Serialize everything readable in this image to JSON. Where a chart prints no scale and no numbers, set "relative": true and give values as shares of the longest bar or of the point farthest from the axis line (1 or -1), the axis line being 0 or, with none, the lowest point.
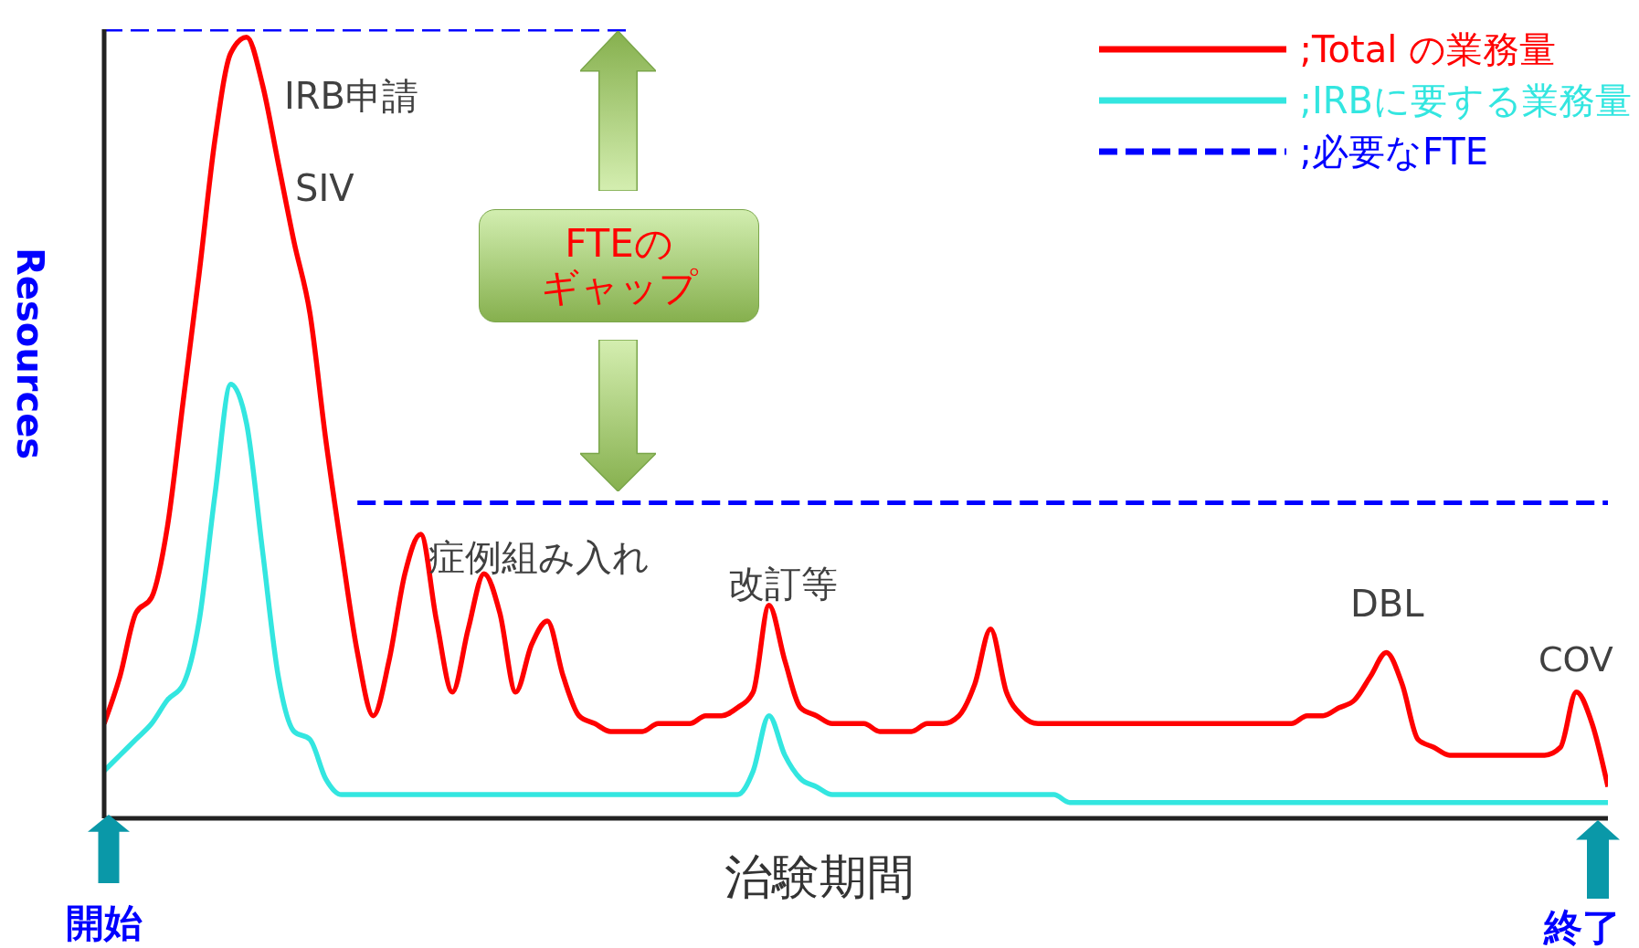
{
  "chart_data": {
    "type": "line",
    "relative": true,
    "xlabel": "治験期間",
    "ylabel": "Resources",
    "legend": "top right",
    "categories": [
      null,
      null,
      null,
      null,
      null,
      null,
      null,
      null,
      null,
      null,
      null,
      null,
      null,
      null,
      null,
      null,
      null,
      null,
      null,
      null,
      null,
      null,
      null,
      null,
      null,
      null,
      null,
      null,
      null,
      null,
      null,
      null,
      null,
      null,
      null,
      null,
      null,
      null,
      null,
      null,
      null,
      null,
      null,
      null,
      null,
      null,
      null,
      null,
      null,
      null,
      null,
      null,
      null,
      null,
      null,
      null,
      null,
      null,
      null,
      null,
      null,
      null,
      null,
      null,
      null,
      null,
      null,
      null,
      null,
      null,
      null,
      null,
      null,
      null,
      null,
      null,
      null,
      null,
      null,
      null,
      null,
      null,
      null,
      null,
      null,
      null,
      null,
      null,
      null,
      null,
      null,
      null,
      null,
      null,
      null,
      null
    ],
    "series": [
      {
        "name": ";Total の業務量",
        "color": "#ff0000",
        "line_style": "solid",
        "values": [
          0.12,
          0.18,
          0.26,
          0.28,
          0.37,
          0.53,
          0.69,
          0.86,
          0.97,
          0.99,
          0.93,
          0.83,
          0.73,
          0.64,
          0.48,
          0.34,
          0.21,
          0.13,
          0.2,
          0.31,
          0.36,
          0.25,
          0.16,
          0.24,
          0.31,
          0.26,
          0.16,
          0.22,
          0.25,
          0.18,
          0.13,
          0.12,
          0.11,
          0.11,
          0.11,
          0.12,
          0.12,
          0.12,
          0.13,
          0.13,
          0.14,
          0.16,
          0.27,
          0.2,
          0.14,
          0.13,
          0.12,
          0.12,
          0.12,
          0.11,
          0.11,
          0.11,
          0.12,
          0.12,
          0.13,
          0.17,
          0.24,
          0.16,
          0.13,
          0.12,
          0.12,
          0.12,
          0.12,
          0.12,
          0.12,
          0.12,
          0.12,
          0.12,
          0.12,
          0.12,
          0.12,
          0.12,
          0.12,
          0.12,
          0.12,
          0.12,
          0.13,
          0.13,
          0.14,
          0.15,
          0.18,
          0.21,
          0.17,
          0.1,
          0.09,
          0.08,
          0.08,
          0.08,
          0.08,
          0.08,
          0.08,
          0.08,
          0.09,
          0.16,
          0.12,
          0.04
        ]
      },
      {
        "name": ";IRBに要する業務量",
        "color": "#33e6e0",
        "line_style": "solid",
        "values": [
          0.06,
          0.08,
          0.1,
          0.12,
          0.15,
          0.17,
          0.25,
          0.41,
          0.55,
          0.5,
          0.34,
          0.18,
          0.11,
          0.1,
          0.05,
          0.03,
          0.03,
          0.03,
          0.03,
          0.03,
          0.03,
          0.03,
          0.03,
          0.03,
          0.03,
          0.03,
          0.03,
          0.03,
          0.03,
          0.03,
          0.03,
          0.03,
          0.03,
          0.03,
          0.03,
          0.03,
          0.03,
          0.03,
          0.03,
          0.03,
          0.03,
          0.06,
          0.13,
          0.08,
          0.05,
          0.04,
          0.03,
          0.03,
          0.03,
          0.03,
          0.03,
          0.03,
          0.03,
          0.03,
          0.03,
          0.03,
          0.03,
          0.03,
          0.03,
          0.03,
          0.03,
          0.02,
          0.02,
          0.02,
          0.02,
          0.02,
          0.02,
          0.02,
          0.02,
          0.02,
          0.02,
          0.02,
          0.02,
          0.02,
          0.02,
          0.02,
          0.02,
          0.02,
          0.02,
          0.02,
          0.02,
          0.02,
          0.02,
          0.02,
          0.02,
          0.02,
          0.02,
          0.02,
          0.02,
          0.02,
          0.02,
          0.02,
          0.02,
          0.02,
          0.02,
          0.02
        ]
      },
      {
        "name": ";必要なFTE",
        "color": "#0000ff",
        "line_style": "dashed",
        "values": [
          1,
          1,
          1,
          1,
          1,
          1,
          1,
          1,
          1,
          1,
          1,
          1,
          1,
          1,
          1,
          1,
          1,
          1,
          1,
          1,
          1,
          1,
          1,
          1,
          1,
          1,
          1,
          1,
          1,
          1,
          1,
          1,
          1,
          1,
          null,
          null,
          null,
          null,
          null,
          null,
          null,
          null,
          null,
          null,
          null,
          null,
          null,
          null,
          null,
          null,
          null,
          null,
          null,
          null,
          null,
          null,
          null,
          null,
          null,
          null,
          null,
          null,
          null,
          null,
          null,
          null,
          null,
          null,
          null,
          null,
          null,
          null,
          null,
          null,
          null,
          null,
          null,
          null,
          null,
          null,
          null,
          null,
          null,
          null,
          null,
          null,
          null,
          null,
          null,
          null,
          null,
          null,
          null,
          null,
          null,
          null
        ]
      },
      {
        "color": "#0000ff",
        "line_style": "dashed",
        "values": [
          null,
          null,
          null,
          null,
          null,
          null,
          null,
          null,
          null,
          null,
          null,
          null,
          null,
          null,
          null,
          null,
          0.4,
          0.4,
          0.4,
          0.4,
          0.4,
          0.4,
          0.4,
          0.4,
          0.4,
          0.4,
          0.4,
          0.4,
          0.4,
          0.4,
          0.4,
          0.4,
          0.4,
          0.4,
          0.4,
          0.4,
          0.4,
          0.4,
          0.4,
          0.4,
          0.4,
          0.4,
          0.4,
          0.4,
          0.4,
          0.4,
          0.4,
          0.4,
          0.4,
          0.4,
          0.4,
          0.4,
          0.4,
          0.4,
          0.4,
          0.4,
          0.4,
          0.4,
          0.4,
          0.4,
          0.4,
          0.4,
          0.4,
          0.4,
          0.4,
          0.4,
          0.4,
          0.4,
          0.4,
          0.4,
          0.4,
          0.4,
          0.4,
          0.4,
          0.4,
          0.4,
          0.4,
          0.4,
          0.4,
          0.4,
          0.4,
          0.4,
          0.4,
          0.4,
          0.4,
          0.4,
          0.4,
          0.4,
          0.4,
          0.4,
          0.4,
          0.4,
          0.4,
          0.4,
          0.4,
          0.4
        ]
      }
    ],
    "annotations": [
      "IRB申請",
      "SIV",
      "症例組み入れ",
      "改訂等",
      "DBL",
      "COV",
      "FTEのギャップ",
      "開始",
      "終了"
    ]
  }
}
